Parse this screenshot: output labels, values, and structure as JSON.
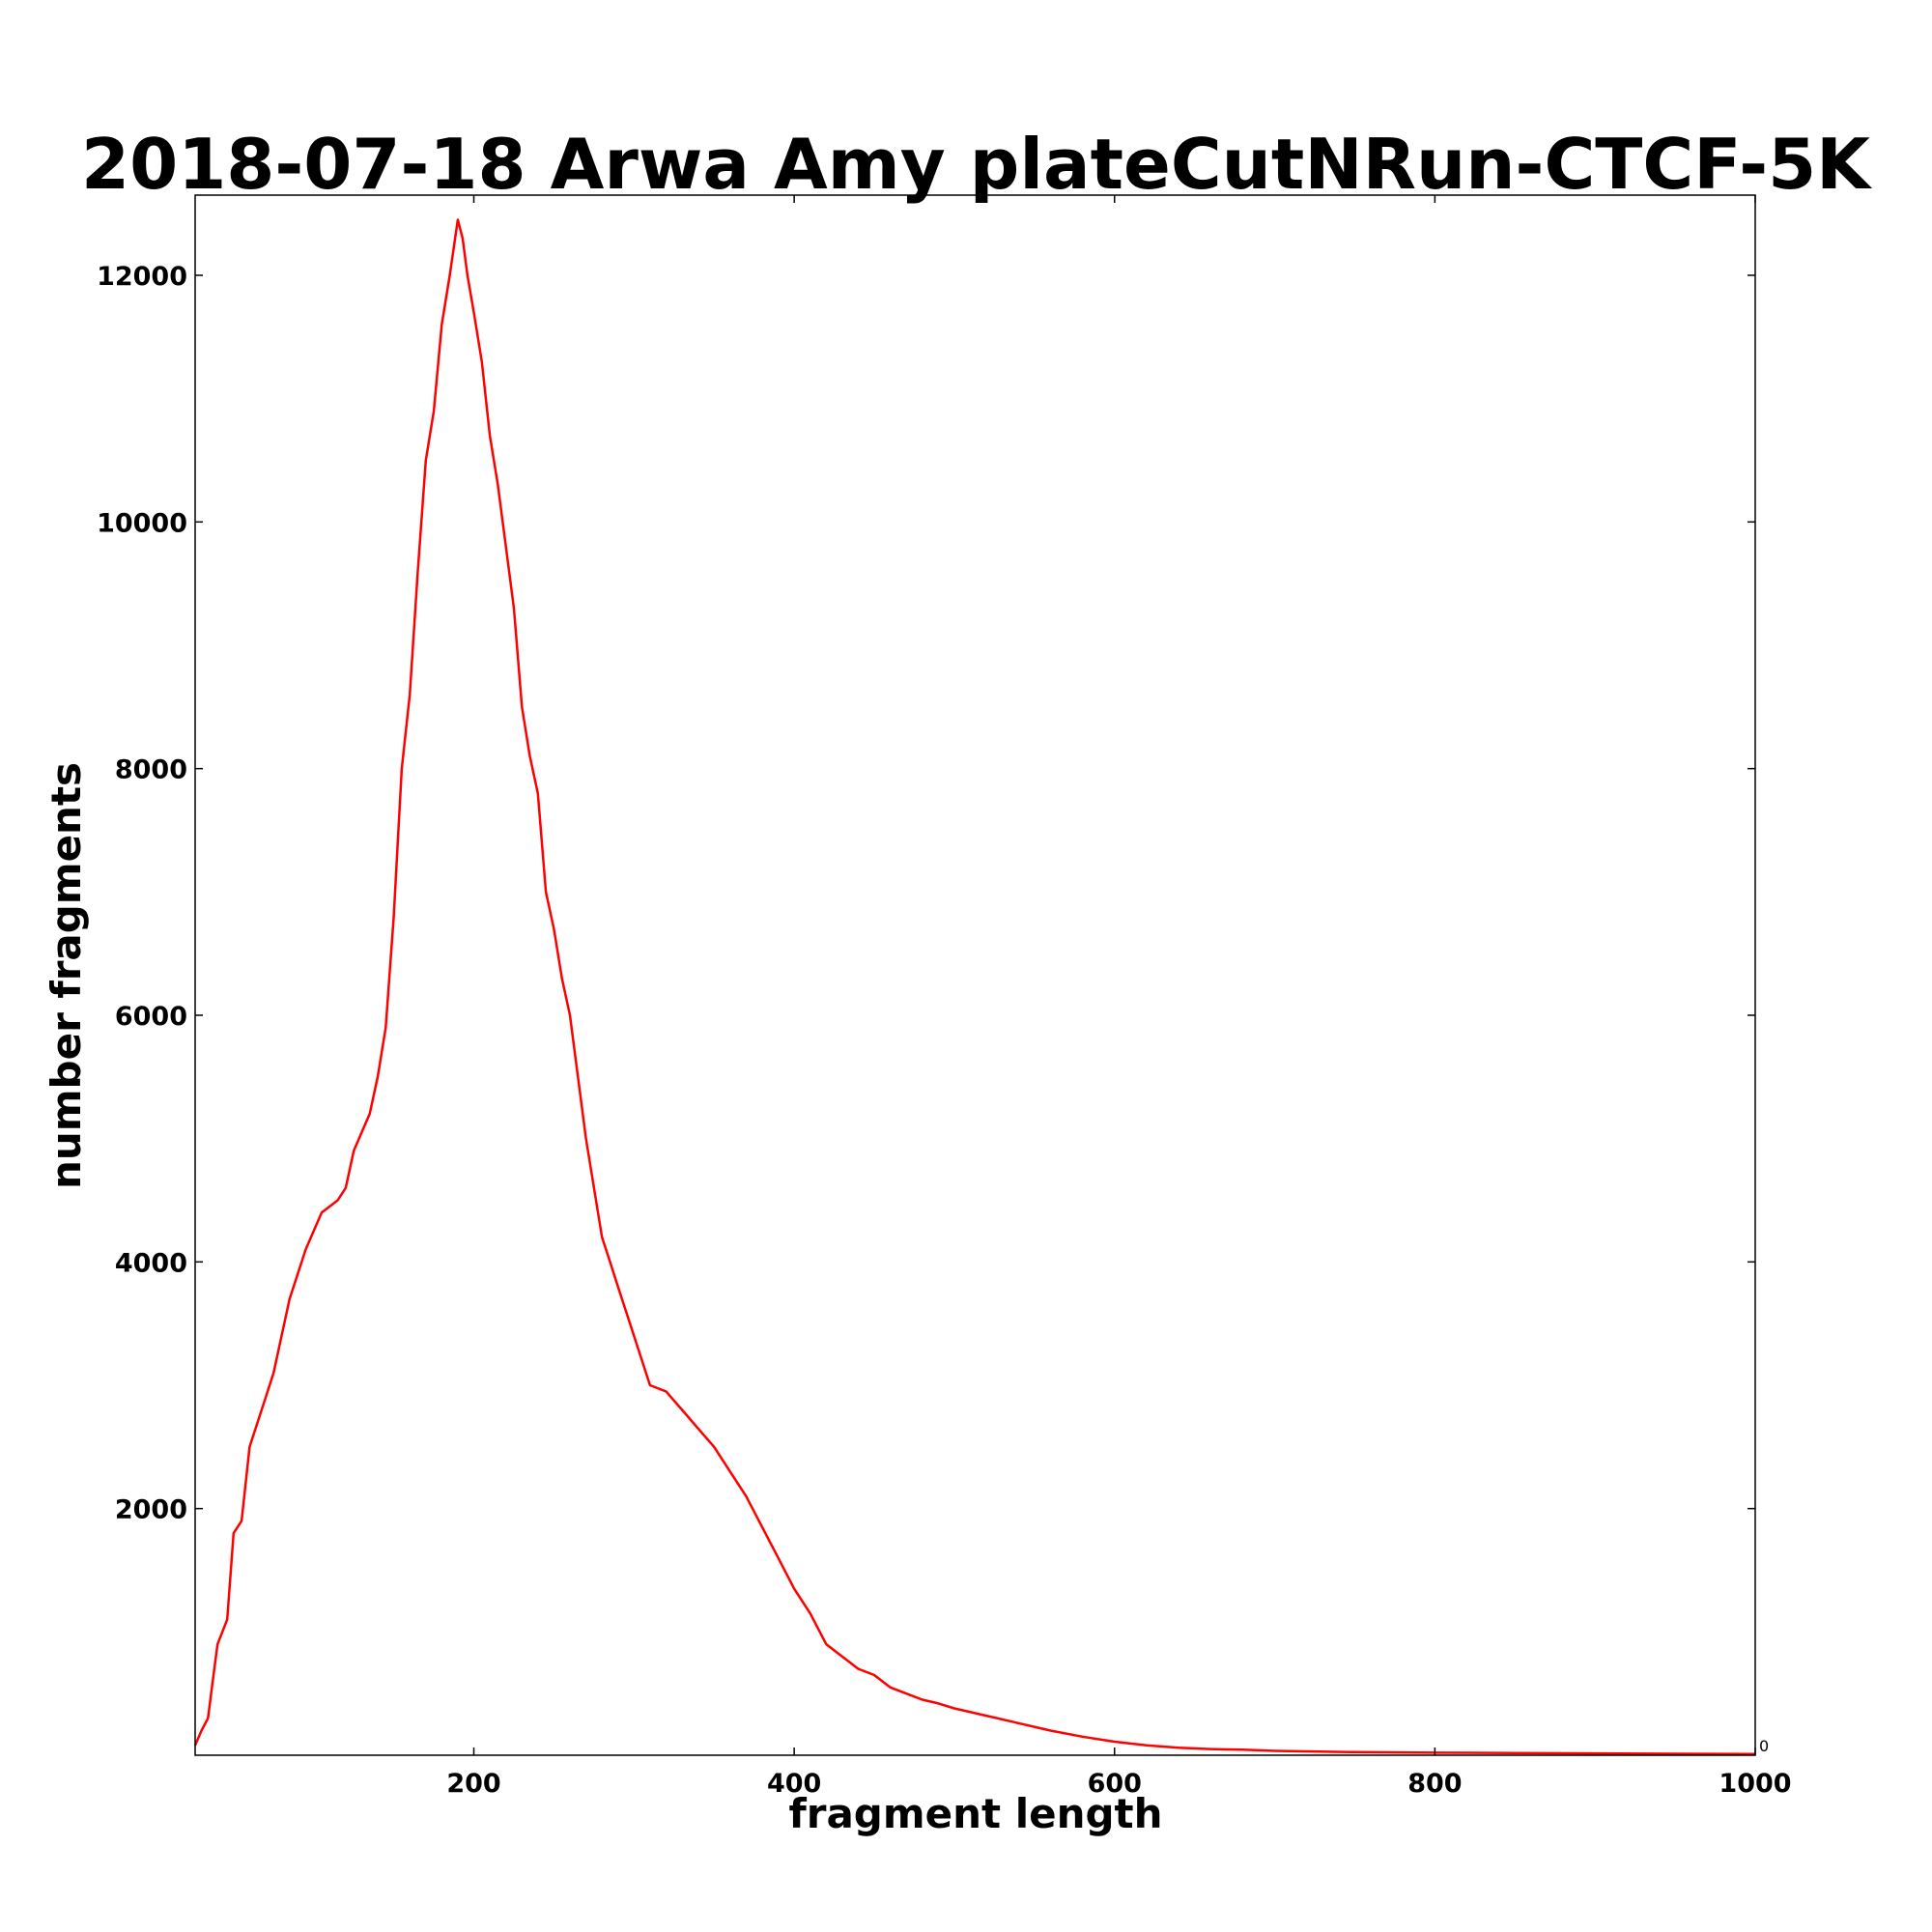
{
  "chart_data": {
    "type": "line",
    "title": "2018-07-18 Arwa Amy plateCutNRun-CTCF-5K",
    "xlabel": "fragment length",
    "ylabel": "number fragments",
    "xlim": [
      26,
      1000
    ],
    "ylim": [
      0,
      12650
    ],
    "x_ticks": [
      200,
      400,
      600,
      800,
      1000
    ],
    "y_ticks": [
      2000,
      4000,
      6000,
      8000,
      10000,
      12000
    ],
    "corner_label": "0",
    "grid": false,
    "legend": "none",
    "line_color": "#ff0000",
    "series": [
      {
        "x": [
          26,
          30,
          34,
          37,
          40,
          43,
          46,
          50,
          55,
          60,
          65,
          70,
          75,
          80,
          85,
          90,
          95,
          100,
          105,
          110,
          115,
          120,
          125,
          130,
          135,
          140,
          145,
          150,
          155,
          160,
          165,
          170,
          175,
          180,
          185,
          190,
          193,
          196,
          200,
          205,
          210,
          215,
          220,
          225,
          230,
          235,
          240,
          245,
          250,
          255,
          260,
          265,
          270,
          275,
          280,
          285,
          290,
          295,
          300,
          310,
          320,
          330,
          340,
          350,
          360,
          370,
          380,
          390,
          400,
          410,
          420,
          430,
          440,
          450,
          460,
          470,
          480,
          490,
          500,
          520,
          540,
          560,
          580,
          600,
          620,
          640,
          660,
          680,
          700,
          750,
          800,
          850,
          900,
          950,
          1000
        ],
        "y": [
          80,
          200,
          300,
          600,
          900,
          1000,
          1100,
          1800,
          1900,
          2500,
          2700,
          2900,
          3100,
          3400,
          3700,
          3900,
          4100,
          4250,
          4400,
          4450,
          4500,
          4600,
          4900,
          5050,
          5200,
          5500,
          5900,
          6800,
          8000,
          8600,
          9600,
          10500,
          10900,
          11600,
          12000,
          12450,
          12300,
          12000,
          11700,
          11300,
          10700,
          10300,
          9800,
          9300,
          8500,
          8100,
          7800,
          7000,
          6700,
          6300,
          6000,
          5500,
          5000,
          4600,
          4200,
          4000,
          3800,
          3600,
          3400,
          3000,
          2950,
          2800,
          2650,
          2500,
          2300,
          2100,
          1850,
          1600,
          1350,
          1150,
          900,
          800,
          700,
          650,
          550,
          500,
          450,
          420,
          380,
          320,
          260,
          200,
          150,
          110,
          80,
          60,
          50,
          45,
          35,
          25,
          20,
          18,
          15,
          12,
          10
        ]
      }
    ]
  }
}
